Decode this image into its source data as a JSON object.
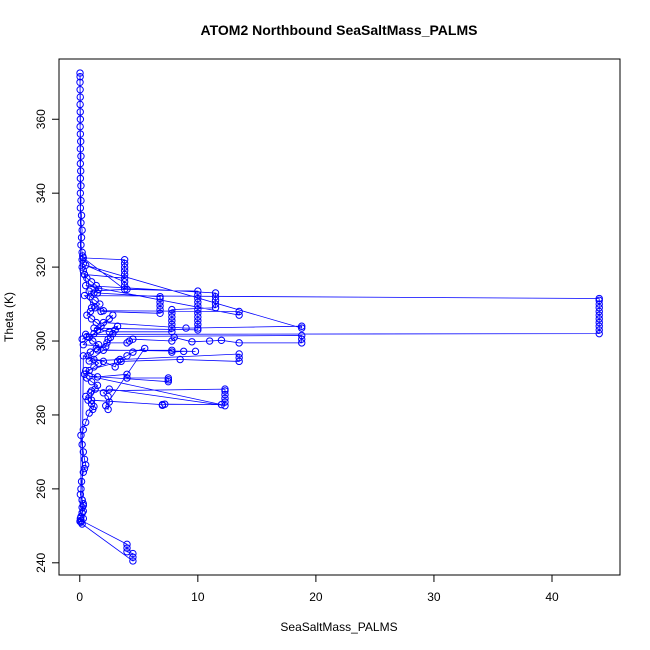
{
  "chart_data": {
    "type": "scatter",
    "title": "ATOM2 Northbound SeaSaltMass_PALMS",
    "xlabel": "SeaSaltMass_PALMS",
    "ylabel": "Theta (K)",
    "xlim": [
      -1.76,
      45.76
    ],
    "ylim": [
      236.7,
      376.3
    ],
    "x_ticks": [
      0,
      10,
      20,
      30,
      40
    ],
    "y_ticks": [
      240,
      260,
      280,
      300,
      320,
      340,
      360
    ],
    "grid": false,
    "legend": "none",
    "series_color": "#0000ff",
    "marker": "open-circle",
    "connected": true,
    "points": [
      [
        0.02,
        251.2
      ],
      [
        0.05,
        252
      ],
      [
        0.1,
        252.5
      ],
      [
        0.2,
        253.5
      ],
      [
        0.3,
        254
      ],
      [
        0.2,
        255
      ],
      [
        0.3,
        256
      ],
      [
        0.2,
        257
      ],
      [
        0.05,
        258.5
      ],
      [
        0.1,
        260
      ],
      [
        0.15,
        262
      ],
      [
        0.3,
        264.5
      ],
      [
        0.4,
        265.5
      ],
      [
        0.5,
        266.5
      ],
      [
        0.4,
        268
      ],
      [
        0.3,
        270
      ],
      [
        0.2,
        272
      ],
      [
        0.1,
        274.5
      ],
      [
        0.3,
        276
      ],
      [
        0.5,
        278
      ],
      [
        0.8,
        280.5
      ],
      [
        1.1,
        281.5
      ],
      [
        1.2,
        282.3
      ],
      [
        1.0,
        283
      ],
      [
        0.7,
        284
      ],
      [
        0.5,
        285
      ],
      [
        0.9,
        286
      ],
      [
        1.3,
        287
      ],
      [
        1.5,
        288
      ],
      [
        1.0,
        289
      ],
      [
        0.6,
        290
      ],
      [
        0.4,
        291
      ],
      [
        0.8,
        292
      ],
      [
        1.2,
        293
      ],
      [
        1.6,
        294
      ],
      [
        1.2,
        295
      ],
      [
        0.7,
        296
      ],
      [
        0.9,
        297
      ],
      [
        1.4,
        298
      ],
      [
        1.6,
        299
      ],
      [
        1.1,
        300
      ],
      [
        0.8,
        301
      ],
      [
        1.2,
        302
      ],
      [
        1.5,
        303
      ],
      [
        1.8,
        304
      ],
      [
        1.4,
        305
      ],
      [
        1.0,
        306
      ],
      [
        0.6,
        307
      ],
      [
        0.9,
        308
      ],
      [
        1.3,
        309
      ],
      [
        1.7,
        310
      ],
      [
        1.3,
        311
      ],
      [
        0.9,
        312
      ],
      [
        1.2,
        313
      ],
      [
        1.6,
        314
      ],
      [
        1.4,
        315
      ],
      [
        1.0,
        316
      ],
      [
        0.6,
        317
      ],
      [
        0.4,
        318
      ],
      [
        0.3,
        319
      ],
      [
        0.2,
        320
      ],
      [
        0.3,
        321
      ],
      [
        0.2,
        322
      ],
      [
        0.25,
        323
      ],
      [
        0.2,
        324
      ],
      [
        0.1,
        326
      ],
      [
        0.15,
        328
      ],
      [
        0.2,
        330
      ],
      [
        0.1,
        332
      ],
      [
        0.15,
        334
      ],
      [
        0.05,
        336
      ],
      [
        0.1,
        338
      ],
      [
        0.05,
        340
      ],
      [
        0.1,
        342
      ],
      [
        0.05,
        344
      ],
      [
        0.08,
        346
      ],
      [
        0.05,
        348
      ],
      [
        0.1,
        350
      ],
      [
        0.05,
        352
      ],
      [
        0.08,
        354
      ],
      [
        0.05,
        356
      ],
      [
        0.03,
        358
      ],
      [
        0.05,
        360
      ],
      [
        0.04,
        362
      ],
      [
        0.03,
        364
      ],
      [
        0.04,
        366
      ],
      [
        0.03,
        368
      ],
      [
        0.02,
        370
      ],
      [
        0.03,
        371.5
      ],
      [
        0.02,
        372.5
      ],
      [
        0.1,
        251.5
      ],
      [
        4.0,
        245
      ],
      [
        4.0,
        244
      ],
      [
        4.0,
        243
      ],
      [
        4.5,
        242.5
      ],
      [
        4.5,
        241.5
      ],
      [
        4.5,
        240.5
      ],
      [
        0.2,
        250.5
      ],
      [
        0.1,
        251
      ],
      [
        0.3,
        252
      ],
      [
        0.2,
        253.5
      ],
      [
        0.3,
        255.5
      ],
      [
        0.2,
        257
      ],
      [
        0.3,
        296
      ],
      [
        2.0,
        294.5
      ],
      [
        3.0,
        293
      ],
      [
        3.2,
        294.5
      ],
      [
        3.4,
        295
      ],
      [
        4.0,
        296
      ],
      [
        4.5,
        297
      ],
      [
        5.5,
        298
      ],
      [
        2.2,
        282.5
      ],
      [
        2.4,
        281.5
      ],
      [
        2.5,
        283.5
      ],
      [
        2.4,
        285
      ],
      [
        2.0,
        286
      ],
      [
        2.5,
        287
      ],
      [
        12.3,
        282.5
      ],
      [
        12.3,
        283.5
      ],
      [
        12.3,
        284.5
      ],
      [
        12.3,
        285.5
      ],
      [
        12.3,
        286.5
      ],
      [
        12.3,
        287
      ],
      [
        1.0,
        286.5
      ],
      [
        1.0,
        284
      ],
      [
        7.0,
        282.8
      ],
      [
        7.0,
        282.6
      ],
      [
        7.2,
        282.9
      ],
      [
        12.0,
        282.8
      ],
      [
        0.8,
        290.5
      ],
      [
        7.5,
        289
      ],
      [
        7.5,
        289.5
      ],
      [
        7.5,
        290
      ],
      [
        4.0,
        290
      ],
      [
        4.0,
        291
      ],
      [
        1.5,
        290.3
      ],
      [
        0.5,
        292
      ],
      [
        3.5,
        294.5
      ],
      [
        8.5,
        295
      ],
      [
        13.5,
        294.5
      ],
      [
        13.5,
        295.5
      ],
      [
        13.5,
        296.5
      ],
      [
        0.8,
        294.6
      ],
      [
        2.0,
        297.5
      ],
      [
        7.8,
        297.5
      ],
      [
        7.8,
        297
      ],
      [
        8.8,
        297.2
      ],
      [
        9.8,
        297.2
      ],
      [
        1.5,
        297.6
      ],
      [
        2.3,
        299.5
      ],
      [
        4.0,
        299.5
      ],
      [
        4.2,
        300
      ],
      [
        4.5,
        300.5
      ],
      [
        7.8,
        300
      ],
      [
        8.0,
        301
      ],
      [
        9.5,
        299.8
      ],
      [
        11.0,
        300
      ],
      [
        12.0,
        300.2
      ],
      [
        13.5,
        299.5
      ],
      [
        18.8,
        299.5
      ],
      [
        18.8,
        300.5
      ],
      [
        18.8,
        301.5
      ],
      [
        0.6,
        301.2
      ],
      [
        0.5,
        301.8
      ],
      [
        44.0,
        302
      ],
      [
        44.0,
        303
      ],
      [
        44.0,
        304
      ],
      [
        44.0,
        305
      ],
      [
        44.0,
        306
      ],
      [
        44.0,
        307
      ],
      [
        44.0,
        308
      ],
      [
        44.0,
        309
      ],
      [
        44.0,
        310
      ],
      [
        44.0,
        311
      ],
      [
        44.0,
        311.5
      ],
      [
        0.4,
        312.3
      ],
      [
        1.8,
        308
      ],
      [
        6.8,
        307.5
      ],
      [
        6.8,
        308.5
      ],
      [
        6.8,
        309.5
      ],
      [
        6.8,
        310.5
      ],
      [
        6.8,
        311.5
      ],
      [
        6.8,
        312
      ],
      [
        1.5,
        313
      ],
      [
        0.8,
        313.5
      ],
      [
        4.0,
        314
      ],
      [
        10.0,
        313.5
      ],
      [
        10.0,
        312.5
      ],
      [
        10.0,
        311.5
      ],
      [
        10.0,
        310.5
      ],
      [
        10.0,
        309.5
      ],
      [
        10.0,
        308.5
      ],
      [
        10.0,
        307.5
      ],
      [
        10.0,
        306.5
      ],
      [
        10.0,
        305.5
      ],
      [
        10.0,
        304.5
      ],
      [
        10.0,
        303.5
      ],
      [
        10.0,
        303
      ],
      [
        1.2,
        303.5
      ],
      [
        2.5,
        302.5
      ],
      [
        7.8,
        302.5
      ],
      [
        7.8,
        303.5
      ],
      [
        7.8,
        304.5
      ],
      [
        7.8,
        305.5
      ],
      [
        7.8,
        306.5
      ],
      [
        7.8,
        307.5
      ],
      [
        7.8,
        308.5
      ],
      [
        11.5,
        309
      ],
      [
        11.5,
        310
      ],
      [
        11.5,
        311
      ],
      [
        11.5,
        312
      ],
      [
        11.5,
        313
      ],
      [
        0.5,
        315
      ],
      [
        13.5,
        307
      ],
      [
        13.5,
        308
      ],
      [
        2.0,
        308.2
      ],
      [
        1.0,
        309
      ],
      [
        0.4,
        318
      ],
      [
        3.8,
        317
      ],
      [
        3.8,
        318
      ],
      [
        3.8,
        319
      ],
      [
        3.8,
        320
      ],
      [
        3.8,
        321
      ],
      [
        3.8,
        322
      ],
      [
        0.3,
        322.5
      ],
      [
        3.8,
        314
      ],
      [
        3.8,
        315
      ],
      [
        3.8,
        316
      ],
      [
        0.5,
        320.5
      ],
      [
        18.8,
        303.5
      ],
      [
        18.8,
        304
      ],
      [
        9.0,
        303.5
      ],
      [
        2.0,
        305
      ],
      [
        2.5,
        306
      ],
      [
        2.8,
        307
      ],
      [
        0.3,
        299
      ],
      [
        2.2,
        298.5
      ],
      [
        2.4,
        300.5
      ],
      [
        2.6,
        301
      ],
      [
        2.8,
        302
      ],
      [
        3.0,
        303
      ],
      [
        3.2,
        304
      ],
      [
        0.2,
        300.5
      ]
    ]
  }
}
